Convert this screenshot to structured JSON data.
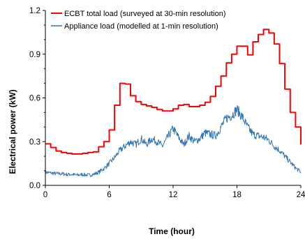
{
  "chart_data": {
    "type": "line",
    "xlabel": "Time (hour)",
    "ylabel": "Electrical power (kW)",
    "xlim": [
      0,
      24
    ],
    "ylim": [
      0,
      1.2
    ],
    "x_ticks": [
      "0",
      "6",
      "12",
      "18",
      "24"
    ],
    "y_ticks": [
      "0.0",
      "0.3",
      "0.6",
      "0.9",
      "1.2"
    ],
    "grid": false,
    "legend_position": "top-left",
    "series": [
      {
        "name": "ECBT total load (surveyed at 30-min resolution)",
        "color": "#ff0000",
        "step": true,
        "x": [
          0,
          0.5,
          1,
          1.5,
          2,
          2.5,
          3,
          3.5,
          4,
          4.5,
          5,
          5.5,
          6,
          6.5,
          7,
          7.5,
          8,
          8.5,
          9,
          9.5,
          10,
          10.5,
          11,
          11.5,
          12,
          12.5,
          13,
          13.5,
          14,
          14.5,
          15,
          15.5,
          16,
          16.5,
          17,
          17.5,
          18,
          18.5,
          19,
          19.5,
          20,
          20.5,
          21,
          21.5,
          22,
          22.5,
          23,
          23.5,
          24
        ],
        "values": [
          0.285,
          0.26,
          0.235,
          0.225,
          0.22,
          0.215,
          0.215,
          0.22,
          0.225,
          0.23,
          0.265,
          0.3,
          0.38,
          0.55,
          0.7,
          0.695,
          0.615,
          0.575,
          0.555,
          0.545,
          0.535,
          0.52,
          0.51,
          0.51,
          0.525,
          0.55,
          0.555,
          0.54,
          0.54,
          0.55,
          0.57,
          0.61,
          0.68,
          0.75,
          0.84,
          0.9,
          0.955,
          0.955,
          0.895,
          0.985,
          1.035,
          1.07,
          1.045,
          0.97,
          0.835,
          0.66,
          0.5,
          0.4,
          0.28
        ]
      },
      {
        "name": "Appliance load (modelled at 1-min resolution)",
        "color": "#2e75b6",
        "step": false,
        "x": [
          0,
          0.5,
          1,
          1.5,
          2,
          2.5,
          3,
          3.5,
          4,
          4.5,
          5,
          5.5,
          6,
          6.5,
          7,
          7.5,
          8,
          8.5,
          9,
          9.5,
          10,
          10.5,
          11,
          11.5,
          12,
          12.5,
          13,
          13.5,
          14,
          14.5,
          15,
          15.5,
          16,
          16.5,
          17,
          17.5,
          18,
          18.5,
          19,
          19.5,
          20,
          20.5,
          21,
          21.5,
          22,
          22.5,
          23,
          23.5,
          24
        ],
        "values": [
          0.09,
          0.085,
          0.08,
          0.08,
          0.075,
          0.075,
          0.07,
          0.075,
          0.07,
          0.075,
          0.09,
          0.115,
          0.15,
          0.19,
          0.24,
          0.27,
          0.3,
          0.28,
          0.32,
          0.28,
          0.32,
          0.3,
          0.27,
          0.33,
          0.39,
          0.33,
          0.28,
          0.34,
          0.3,
          0.32,
          0.36,
          0.35,
          0.34,
          0.4,
          0.46,
          0.48,
          0.52,
          0.47,
          0.4,
          0.35,
          0.34,
          0.33,
          0.31,
          0.27,
          0.24,
          0.2,
          0.16,
          0.12,
          0.09
        ]
      }
    ]
  }
}
